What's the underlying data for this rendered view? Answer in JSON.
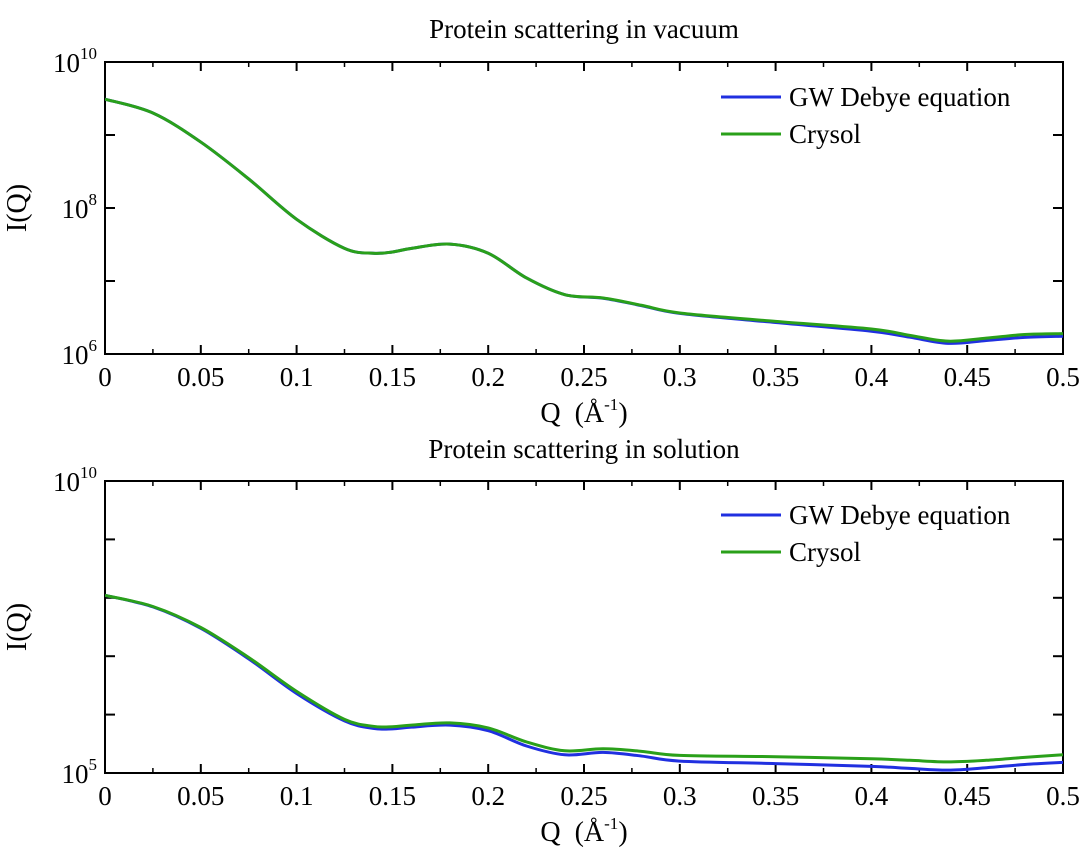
{
  "chart_data": [
    {
      "type": "line",
      "title": "Protein scattering in vacuum",
      "xlabel": "Q",
      "xlabel_unit": "Å",
      "xlabel_unit_exp": "-1",
      "ylabel": "I(Q)",
      "yscale": "log",
      "xlim": [
        0,
        0.5
      ],
      "ylim": [
        1000000,
        10000000000
      ],
      "xticks": [
        "0",
        "0.05",
        "0.1",
        "0.15",
        "0.2",
        "0.25",
        "0.3",
        "0.35",
        "0.4",
        "0.45",
        "0.5"
      ],
      "yticks": [
        {
          "base": "10",
          "exp": "6",
          "value": 1000000
        },
        {
          "base": "10",
          "exp": "8",
          "value": 100000000
        },
        {
          "base": "10",
          "exp": "10",
          "value": 10000000000
        }
      ],
      "grid": false,
      "legend_position": "top-right",
      "series": [
        {
          "name": "GW Debye equation",
          "color": "#2030e0",
          "x": [
            0,
            0.025,
            0.05,
            0.075,
            0.1,
            0.125,
            0.14,
            0.15,
            0.16,
            0.18,
            0.2,
            0.22,
            0.24,
            0.26,
            0.28,
            0.3,
            0.35,
            0.4,
            0.42,
            0.44,
            0.46,
            0.48,
            0.5
          ],
          "y": [
            3100000000,
            2000000000,
            800000000,
            250000000,
            70000000,
            28000000,
            24000000,
            25000000,
            28000000,
            32000000,
            24000000,
            11000000,
            6500000,
            5800000,
            4600000,
            3600000,
            2700000,
            2050000,
            1700000,
            1400000,
            1530000,
            1690000,
            1750000
          ]
        },
        {
          "name": "Crysol",
          "color": "#2aa01a",
          "x": [
            0,
            0.025,
            0.05,
            0.075,
            0.1,
            0.125,
            0.14,
            0.15,
            0.16,
            0.18,
            0.2,
            0.22,
            0.24,
            0.26,
            0.28,
            0.3,
            0.35,
            0.4,
            0.42,
            0.44,
            0.46,
            0.48,
            0.5
          ],
          "y": [
            3100000000,
            2000000000,
            800000000,
            250000000,
            70000000,
            28000000,
            24000000,
            25000000,
            28000000,
            32000000,
            24000000,
            11000000,
            6500000,
            5850000,
            4650000,
            3650000,
            2800000,
            2200000,
            1800000,
            1500000,
            1650000,
            1850000,
            1900000
          ]
        }
      ]
    },
    {
      "type": "line",
      "title": "Protein scattering in solution",
      "xlabel": "Q",
      "xlabel_unit": "Å",
      "xlabel_unit_exp": "-1",
      "ylabel": "I(Q)",
      "yscale": "log",
      "xlim": [
        0,
        0.5
      ],
      "ylim": [
        100000,
        10000000000
      ],
      "xticks": [
        "0",
        "0.05",
        "0.1",
        "0.15",
        "0.2",
        "0.25",
        "0.3",
        "0.35",
        "0.4",
        "0.45",
        "0.5"
      ],
      "yticks": [
        {
          "base": "10",
          "exp": "5",
          "value": 100000
        },
        {
          "base": "10",
          "exp": "10",
          "value": 10000000000
        }
      ],
      "grid": false,
      "legend_position": "top-right",
      "series": [
        {
          "name": "GW Debye equation",
          "color": "#2030e0",
          "x": [
            0,
            0.025,
            0.05,
            0.075,
            0.1,
            0.125,
            0.14,
            0.15,
            0.16,
            0.18,
            0.2,
            0.22,
            0.24,
            0.26,
            0.28,
            0.3,
            0.35,
            0.4,
            0.42,
            0.44,
            0.46,
            0.48,
            0.5
          ],
          "y": [
            110000000,
            70000000,
            30000000,
            9000000,
            2300000,
            780000,
            580000,
            570000,
            610000,
            660000,
            530000,
            290000,
            205000,
            225000,
            195000,
            160000,
            145000,
            130000,
            120000,
            112000,
            123000,
            140000,
            152000
          ]
        },
        {
          "name": "Crysol",
          "color": "#2aa01a",
          "x": [
            0,
            0.025,
            0.05,
            0.075,
            0.1,
            0.125,
            0.14,
            0.15,
            0.16,
            0.18,
            0.2,
            0.22,
            0.24,
            0.26,
            0.28,
            0.3,
            0.35,
            0.4,
            0.42,
            0.44,
            0.46,
            0.48,
            0.5
          ],
          "y": [
            110000000,
            71000000,
            31000000,
            9500000,
            2500000,
            830000,
            630000,
            620000,
            660000,
            720000,
            590000,
            340000,
            240000,
            260000,
            235000,
            200000,
            190000,
            175000,
            165000,
            155000,
            165000,
            185000,
            205000
          ]
        }
      ]
    }
  ]
}
